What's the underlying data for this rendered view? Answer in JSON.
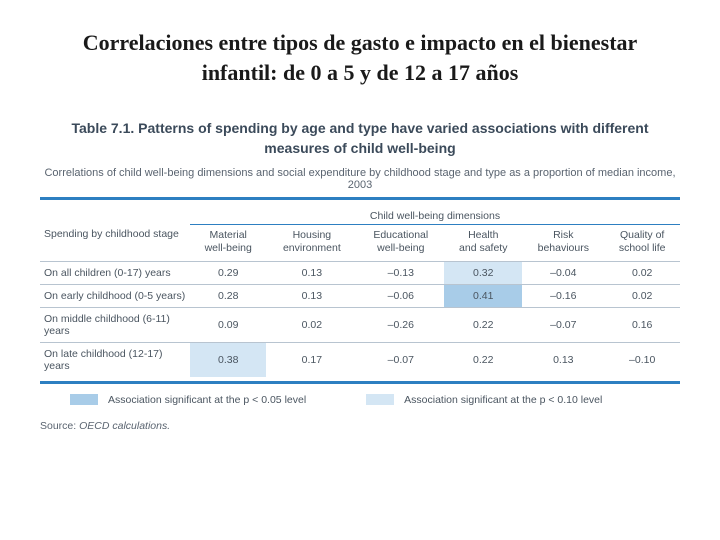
{
  "slide": {
    "title": "Correlaciones entre tipos de gasto e impacto en el bienestar infantil: de 0 a 5 y de 12 a 17 años"
  },
  "table": {
    "number": "Table 7.1.",
    "title": "Patterns of spending by age and type have varied associations with different measures of child well-being",
    "subtitle": "Correlations of child well-being dimensions and social expenditure by childhood stage and type as a proportion of median income, 2003",
    "super_header": "Child well-being dimensions",
    "row_header": "Spending by childhood stage",
    "columns": [
      "Material\nwell-being",
      "Housing\nenvironment",
      "Educational\nwell-being",
      "Health\nand safety",
      "Risk\nbehaviours",
      "Quality of\nschool life"
    ],
    "rows": [
      {
        "label": "On all children (0-17) years",
        "values": [
          "0.29",
          "0.13",
          "–0.13",
          "0.32",
          "–0.04",
          "0.02"
        ],
        "hl": [
          "",
          "",
          "",
          "hl-10",
          "",
          ""
        ]
      },
      {
        "label": "On early childhood (0-5 years)",
        "values": [
          "0.28",
          "0.13",
          "–0.06",
          "0.41",
          "–0.16",
          "0.02"
        ],
        "hl": [
          "",
          "",
          "",
          "hl-05",
          "",
          ""
        ]
      },
      {
        "label": "On middle childhood (6-11) years",
        "values": [
          "0.09",
          "0.02",
          "–0.26",
          "0.22",
          "–0.07",
          "0.16"
        ],
        "hl": [
          "",
          "",
          "",
          "",
          "",
          ""
        ]
      },
      {
        "label": "On late childhood (12-17) years",
        "values": [
          "0.38",
          "0.17",
          "–0.07",
          "0.22",
          "0.13",
          "–0.10"
        ],
        "hl": [
          "hl-10",
          "",
          "",
          "",
          "",
          ""
        ]
      }
    ],
    "legend": {
      "sig05": {
        "text": "Association significant at the p < 0.05 level",
        "color": "#a8cce8"
      },
      "sig10": {
        "text": "Association significant at the p < 0.10 level",
        "color": "#d4e6f4"
      }
    },
    "source_label": "Source:",
    "source_text": "OECD calculations.",
    "colors": {
      "rule": "#2d7fc1",
      "text": "#4a5560",
      "row_border": "#b8c4d0"
    },
    "fontsize": {
      "title": 14,
      "subtitle": 11,
      "body": 10.5
    }
  }
}
